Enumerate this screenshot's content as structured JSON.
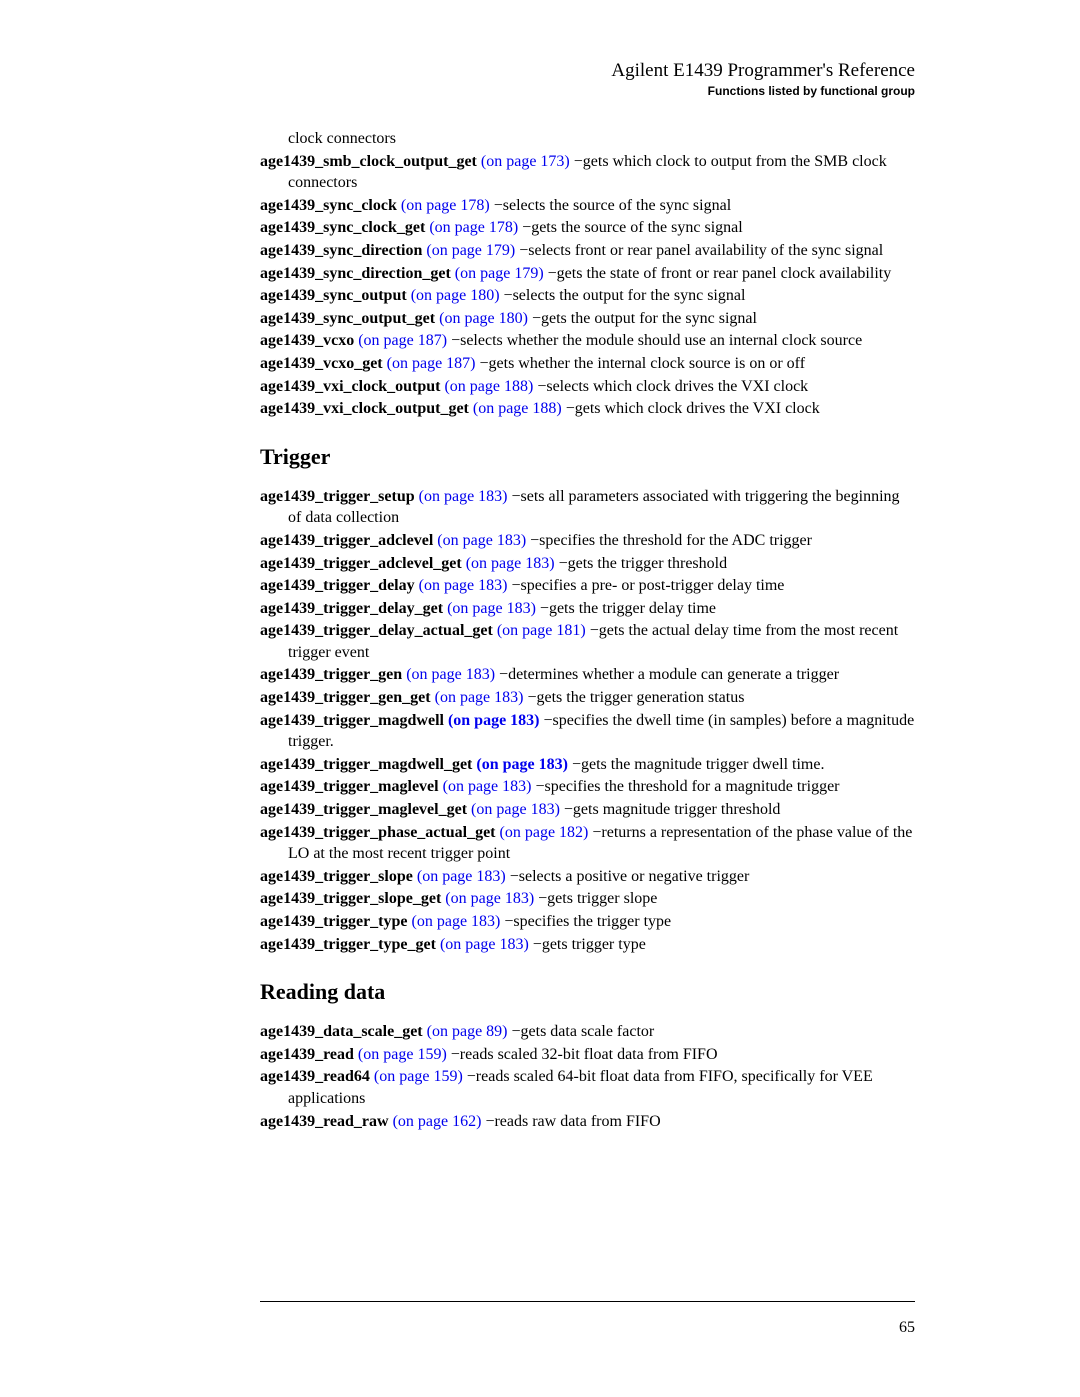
{
  "header": {
    "title": "Agilent E1439 Programmer's Reference",
    "subtitle": "Functions listed by functional group"
  },
  "continuation": "clock connectors",
  "sections": [
    {
      "heading": null,
      "entries": [
        {
          "fn": "age1439_smb_clock_output_get",
          "ref": "(on page 173)",
          "desc": " −gets which clock to output from the SMB clock connectors"
        },
        {
          "fn": "age1439_sync_clock",
          "ref": "(on page 178)",
          "desc": " −selects the source of the sync signal"
        },
        {
          "fn": "age1439_sync_clock_get",
          "ref": "(on page 178)",
          "desc": " −gets the source of the sync signal"
        },
        {
          "fn": "age1439_sync_direction",
          "ref": "(on page 179)",
          "desc": " −selects front or rear panel availability of the sync signal"
        },
        {
          "fn": "age1439_sync_direction_get",
          "ref": "(on page 179)",
          "desc": " −gets the state of front or rear panel clock availability"
        },
        {
          "fn": "age1439_sync_output",
          "ref": "(on page 180)",
          "desc": " −selects the output for the sync signal"
        },
        {
          "fn": "age1439_sync_output_get",
          "ref": "(on page 180)",
          "desc": " −gets the output for the sync signal"
        },
        {
          "fn": "age1439_vcxo",
          "ref": "(on page 187)",
          "desc": " −selects whether the module should use an internal clock source"
        },
        {
          "fn": "age1439_vcxo_get",
          "ref": "(on page 187)",
          "desc": " −gets whether the internal clock source is on or off"
        },
        {
          "fn": "age1439_vxi_clock_output",
          "ref": "(on page 188)",
          "desc": " −selects which clock drives the VXI clock"
        },
        {
          "fn": "age1439_vxi_clock_output_get",
          "ref": "(on page 188)",
          "desc": " −gets which clock drives the VXI clock"
        }
      ]
    },
    {
      "heading": "Trigger",
      "entries": [
        {
          "fn": "age1439_trigger_setup",
          "ref": "(on page 183)",
          "desc": " −sets all parameters associated with triggering the beginning of data collection"
        },
        {
          "fn": "age1439_trigger_adclevel",
          "ref": "(on page 183)",
          "desc": " −specifies the threshold for the ADC trigger"
        },
        {
          "fn": "age1439_trigger_adclevel_get",
          "ref": "(on page 183)",
          "desc": " −gets the trigger threshold"
        },
        {
          "fn": "age1439_trigger_delay",
          "ref": "(on page 183)",
          "desc": " −specifies a pre- or post-trigger delay time"
        },
        {
          "fn": "age1439_trigger_delay_get",
          "ref": "(on page 183)",
          "desc": " −gets the trigger delay time"
        },
        {
          "fn": "age1439_trigger_delay_actual_get",
          "ref": "(on page 181)",
          "desc": "  −gets the actual delay time from the most recent trigger event"
        },
        {
          "fn": "age1439_trigger_gen",
          "ref": "(on page 183)",
          "desc": " −determines whether a module can generate a trigger"
        },
        {
          "fn": "age1439_trigger_gen_get",
          "ref": "(on page 183)",
          "desc": " −gets the trigger generation status"
        },
        {
          "fn": "age1439_trigger_magdwell ",
          "ref": " (on page 183)",
          "refBold": true,
          "desc": " −specifies the dwell time (in samples) before a magnitude trigger."
        },
        {
          "fn": "age1439_trigger_magdwell_get ",
          "ref": " (on page 183)",
          "refBold": true,
          "desc": " −gets the magnitude trigger dwell time."
        },
        {
          "fn": "age1439_trigger_maglevel",
          "ref": "(on page 183)",
          "desc": " −specifies the threshold for a magnitude trigger"
        },
        {
          "fn": "age1439_trigger_maglevel_get",
          "ref": "(on page 183)",
          "desc": " −gets magnitude trigger threshold"
        },
        {
          "fn": "age1439_trigger_phase_actual_get",
          "ref": "(on page 182)",
          "desc": " −returns a representation of the phase value of the LO at the most recent trigger point"
        },
        {
          "fn": "age1439_trigger_slope",
          "ref": "(on page 183)",
          "desc": " −selects a positive or negative trigger"
        },
        {
          "fn": "age1439_trigger_slope_get",
          "ref": "(on page 183)",
          "desc": " −gets trigger slope"
        },
        {
          "fn": "age1439_trigger_type",
          "ref": "(on page 183)",
          "desc": " −specifies the trigger type"
        },
        {
          "fn": "age1439_trigger_type_get",
          "ref": "(on page 183)",
          "desc": " −gets trigger type"
        }
      ]
    },
    {
      "heading": "Reading data",
      "entries": [
        {
          "fn": "age1439_data_scale_get",
          "ref": "(on page 89)",
          "desc": " −gets data scale factor"
        },
        {
          "fn": "age1439_read",
          "ref": "(on page 159)",
          "desc": " −reads scaled 32-bit float data from FIFO"
        },
        {
          "fn": "age1439_read64",
          "ref": "(on page 159)",
          "desc": " −reads scaled 64-bit float data from FIFO, specifically for VEE applications"
        },
        {
          "fn": "age1439_read_raw",
          "ref": "(on page 162)",
          "desc": " −reads raw data from FIFO"
        }
      ]
    }
  ],
  "pageNumber": "65"
}
